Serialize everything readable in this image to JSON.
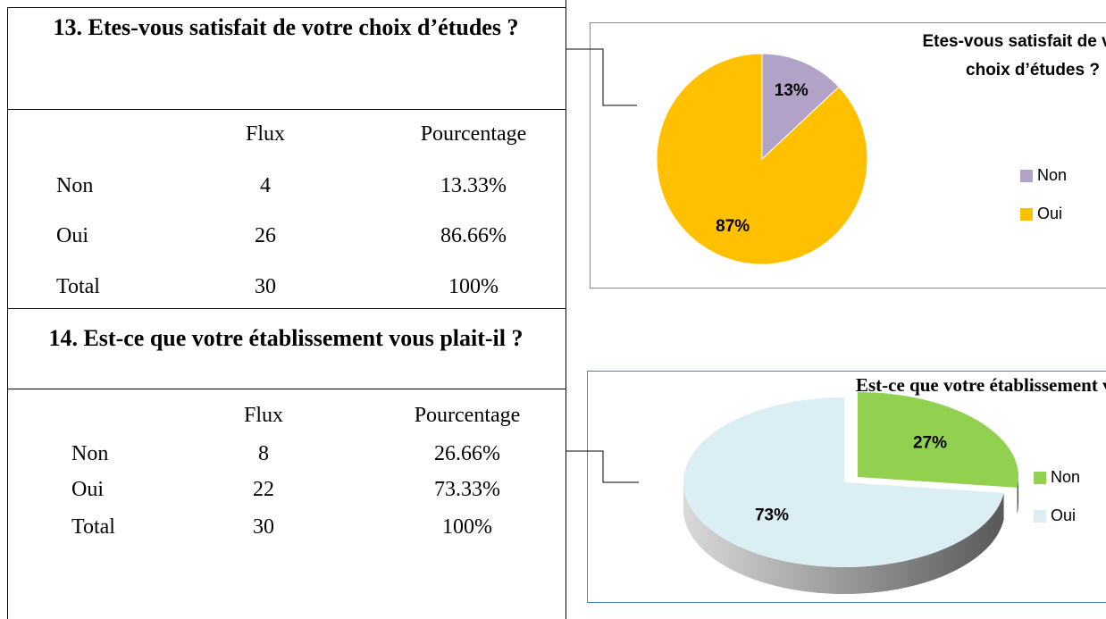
{
  "sections": [
    {
      "title": "13. Etes-vous satisfait de votre choix d’études ?",
      "columns": [
        "Flux",
        "Pourcentage"
      ],
      "rows": [
        [
          "Non",
          "4",
          "13.33%"
        ],
        [
          "Oui",
          "26",
          "86.66%"
        ],
        [
          "Total",
          "30",
          "100%"
        ]
      ]
    },
    {
      "title": "14. Est-ce que votre établissement vous plait-il ?",
      "columns": [
        "Flux",
        "Pourcentage"
      ],
      "rows": [
        [
          "Non",
          "8",
          "26.66%"
        ],
        [
          "Oui",
          "22",
          "73.33%"
        ],
        [
          "Total",
          "30",
          "100%"
        ]
      ]
    }
  ],
  "chart_data": [
    {
      "type": "pie",
      "title": "Etes-vous satisfait de votre choix d’études ?",
      "categories": [
        "Non",
        "Oui"
      ],
      "values": [
        13,
        87
      ],
      "value_labels": [
        "13%",
        "87%"
      ],
      "colors": [
        "#b3a2c7",
        "#ffc000"
      ],
      "legend": "right"
    },
    {
      "type": "pie3d",
      "title": "Est-ce que votre établissement vous plait-il",
      "categories": [
        "Non",
        "Oui"
      ],
      "values": [
        27,
        73
      ],
      "value_labels": [
        "27%",
        "73%"
      ],
      "colors": [
        "#92d050",
        "#daeef3"
      ],
      "legend": "right",
      "explode": [
        0
      ]
    }
  ]
}
